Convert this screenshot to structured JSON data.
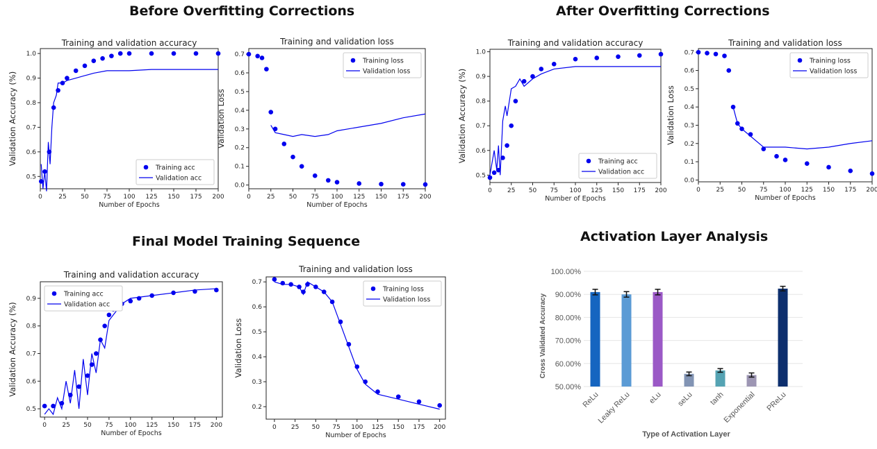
{
  "sections": {
    "before": "Before Overfitting Corrections",
    "after": "After Overfitting Corrections",
    "final": "Final Model Training Sequence",
    "activation": "Activation Layer Analysis"
  },
  "colors": {
    "series": "#0000ee",
    "grid": "#e5e5e5"
  },
  "chart_data": [
    {
      "id": "before_acc",
      "type": "line",
      "title": "Training and validation accuracy",
      "xlabel": "Number of Epochs",
      "ylabel": "Validation Accuracy (%)",
      "xlim": [
        0,
        200
      ],
      "ylim": [
        0.45,
        1.02
      ],
      "xticks": [
        0,
        25,
        50,
        75,
        100,
        125,
        150,
        175,
        200
      ],
      "yticks": [
        0.5,
        0.6,
        0.7,
        0.8,
        0.9,
        1.0
      ],
      "legend": "bottom-right",
      "series": [
        {
          "name": "Training acc",
          "style": "dots",
          "x": [
            1,
            5,
            10,
            15,
            20,
            25,
            30,
            40,
            50,
            60,
            70,
            80,
            90,
            100,
            125,
            150,
            175,
            200
          ],
          "y": [
            0.48,
            0.52,
            0.6,
            0.78,
            0.85,
            0.88,
            0.9,
            0.93,
            0.95,
            0.97,
            0.98,
            0.99,
            1.0,
            1.0,
            1.0,
            1.0,
            1.0,
            1.0
          ]
        },
        {
          "name": "Validation acc",
          "style": "line",
          "x": [
            1,
            3,
            5,
            7,
            9,
            11,
            13,
            15,
            18,
            20,
            25,
            30,
            40,
            50,
            60,
            75,
            100,
            125,
            150,
            175,
            200
          ],
          "y": [
            0.55,
            0.45,
            0.52,
            0.44,
            0.64,
            0.55,
            0.7,
            0.8,
            0.83,
            0.88,
            0.88,
            0.89,
            0.9,
            0.91,
            0.92,
            0.93,
            0.93,
            0.935,
            0.935,
            0.935,
            0.935
          ]
        }
      ]
    },
    {
      "id": "before_loss",
      "type": "line",
      "title": "Training and validation loss",
      "xlabel": "Number of Epochs",
      "ylabel": "Validation Loss",
      "xlim": [
        0,
        200
      ],
      "ylim": [
        -0.02,
        0.73
      ],
      "xticks": [
        0,
        25,
        50,
        75,
        100,
        125,
        150,
        175,
        200
      ],
      "yticks": [
        0.0,
        0.1,
        0.2,
        0.3,
        0.4,
        0.5,
        0.6,
        0.7
      ],
      "legend": "top-right",
      "series": [
        {
          "name": "Training loss",
          "style": "dots",
          "x": [
            0,
            10,
            15,
            20,
            25,
            30,
            40,
            50,
            60,
            75,
            90,
            100,
            125,
            150,
            175,
            200
          ],
          "y": [
            0.7,
            0.69,
            0.68,
            0.62,
            0.39,
            0.3,
            0.22,
            0.15,
            0.1,
            0.05,
            0.025,
            0.015,
            0.008,
            0.005,
            0.004,
            0.003
          ]
        },
        {
          "name": "Validation loss",
          "style": "line",
          "x": [
            25,
            30,
            40,
            50,
            60,
            75,
            90,
            100,
            125,
            150,
            175,
            200
          ],
          "y": [
            0.32,
            0.28,
            0.27,
            0.26,
            0.27,
            0.26,
            0.27,
            0.29,
            0.31,
            0.33,
            0.36,
            0.38
          ]
        }
      ]
    },
    {
      "id": "after_acc",
      "type": "line",
      "title": "Training and validation accuracy",
      "xlabel": "Number of Epochs",
      "ylabel": "Validation Accuracy (%)",
      "xlim": [
        0,
        200
      ],
      "ylim": [
        0.47,
        1.01
      ],
      "xticks": [
        0,
        25,
        50,
        75,
        100,
        125,
        150,
        175,
        200
      ],
      "yticks": [
        0.5,
        0.6,
        0.7,
        0.8,
        0.9,
        1.0
      ],
      "legend": "bottom-right",
      "series": [
        {
          "name": "Training acc",
          "style": "dots",
          "x": [
            0,
            5,
            10,
            15,
            20,
            25,
            30,
            40,
            50,
            60,
            75,
            100,
            125,
            150,
            175,
            200
          ],
          "y": [
            0.49,
            0.51,
            0.52,
            0.57,
            0.62,
            0.7,
            0.8,
            0.88,
            0.9,
            0.93,
            0.95,
            0.97,
            0.975,
            0.98,
            0.985,
            0.99
          ]
        },
        {
          "name": "Validation acc",
          "style": "line",
          "x": [
            0,
            5,
            8,
            10,
            12,
            15,
            18,
            20,
            25,
            30,
            35,
            40,
            50,
            60,
            75,
            100,
            125,
            150,
            175,
            200
          ],
          "y": [
            0.5,
            0.6,
            0.52,
            0.62,
            0.5,
            0.72,
            0.78,
            0.74,
            0.85,
            0.86,
            0.89,
            0.86,
            0.89,
            0.91,
            0.93,
            0.94,
            0.94,
            0.94,
            0.94,
            0.94
          ]
        }
      ]
    },
    {
      "id": "after_loss",
      "type": "line",
      "title": "Training and validation loss",
      "xlabel": "Number of Epochs",
      "ylabel": "Validation Loss",
      "xlim": [
        0,
        200
      ],
      "ylim": [
        -0.01,
        0.72
      ],
      "xticks": [
        0,
        25,
        50,
        75,
        100,
        125,
        150,
        175,
        200
      ],
      "yticks": [
        0.0,
        0.1,
        0.2,
        0.3,
        0.4,
        0.5,
        0.6,
        0.7
      ],
      "legend": "top-right",
      "series": [
        {
          "name": "Training loss",
          "style": "dots",
          "x": [
            0,
            10,
            20,
            30,
            35,
            40,
            45,
            50,
            60,
            75,
            90,
            100,
            125,
            150,
            175,
            200
          ],
          "y": [
            0.7,
            0.695,
            0.69,
            0.68,
            0.6,
            0.4,
            0.31,
            0.28,
            0.25,
            0.17,
            0.13,
            0.11,
            0.09,
            0.07,
            0.05,
            0.035
          ]
        },
        {
          "name": "Validation loss",
          "style": "line",
          "x": [
            40,
            45,
            50,
            60,
            75,
            90,
            100,
            125,
            150,
            175,
            200
          ],
          "y": [
            0.4,
            0.31,
            0.28,
            0.24,
            0.18,
            0.18,
            0.18,
            0.17,
            0.18,
            0.2,
            0.215
          ]
        }
      ]
    },
    {
      "id": "final_acc",
      "type": "line",
      "title": "Training and validation accuracy",
      "xlabel": "Number of Epochs",
      "ylabel": "Validation Accuracy (%)",
      "xlim": [
        -5,
        207
      ],
      "ylim": [
        0.47,
        0.96
      ],
      "xticks": [
        0,
        25,
        50,
        75,
        100,
        125,
        150,
        175,
        200
      ],
      "yticks": [
        0.5,
        0.6,
        0.7,
        0.8,
        0.9
      ],
      "legend": "top-left",
      "series": [
        {
          "name": "Training acc",
          "style": "dots",
          "x": [
            0,
            10,
            20,
            30,
            40,
            50,
            55,
            60,
            65,
            70,
            75,
            80,
            90,
            100,
            110,
            125,
            150,
            175,
            200
          ],
          "y": [
            0.51,
            0.51,
            0.52,
            0.55,
            0.58,
            0.62,
            0.66,
            0.7,
            0.75,
            0.8,
            0.84,
            0.86,
            0.88,
            0.89,
            0.9,
            0.91,
            0.92,
            0.925,
            0.93
          ]
        },
        {
          "name": "Validation acc",
          "style": "line",
          "x": [
            0,
            5,
            10,
            15,
            20,
            25,
            30,
            35,
            40,
            45,
            50,
            55,
            60,
            65,
            70,
            75,
            80,
            90,
            100,
            125,
            150,
            175,
            200
          ],
          "y": [
            0.48,
            0.5,
            0.48,
            0.54,
            0.5,
            0.6,
            0.52,
            0.64,
            0.5,
            0.68,
            0.55,
            0.7,
            0.63,
            0.75,
            0.72,
            0.82,
            0.84,
            0.88,
            0.9,
            0.91,
            0.92,
            0.93,
            0.935
          ]
        }
      ]
    },
    {
      "id": "final_loss",
      "type": "line",
      "title": "Training and validation loss",
      "xlabel": "Number of Epochs",
      "ylabel": "Validation Loss",
      "xlim": [
        -10,
        207
      ],
      "ylim": [
        0.15,
        0.72
      ],
      "xticks": [
        0,
        25,
        50,
        75,
        100,
        125,
        150,
        175,
        200
      ],
      "yticks": [
        0.2,
        0.3,
        0.4,
        0.5,
        0.6,
        0.7
      ],
      "legend": "top-right",
      "series": [
        {
          "name": "Training loss",
          "style": "dots",
          "x": [
            0,
            10,
            20,
            30,
            35,
            40,
            50,
            60,
            70,
            80,
            90,
            100,
            110,
            125,
            150,
            175,
            200
          ],
          "y": [
            0.71,
            0.695,
            0.69,
            0.68,
            0.66,
            0.69,
            0.68,
            0.66,
            0.62,
            0.54,
            0.45,
            0.36,
            0.3,
            0.26,
            0.24,
            0.22,
            0.205
          ]
        },
        {
          "name": "Validation loss",
          "style": "line",
          "x": [
            0,
            10,
            20,
            30,
            35,
            40,
            50,
            60,
            70,
            80,
            90,
            100,
            110,
            125,
            150,
            175,
            200
          ],
          "y": [
            0.7,
            0.69,
            0.69,
            0.68,
            0.65,
            0.7,
            0.68,
            0.66,
            0.62,
            0.53,
            0.44,
            0.35,
            0.29,
            0.25,
            0.23,
            0.21,
            0.19
          ]
        }
      ]
    },
    {
      "id": "activation",
      "type": "bar",
      "xlabel": "Type of Activation Layer",
      "ylabel": "Cross Validated Accuracy",
      "ylim": [
        50,
        100
      ],
      "yticks": [
        "50.00%",
        "60.00%",
        "70.00%",
        "80.00%",
        "90.00%",
        "100.00%"
      ],
      "categories": [
        "ReLu",
        "Leaky ReLu",
        "eLu",
        "seLu",
        "tanh",
        "Exponential",
        "PReLu"
      ],
      "values": [
        91,
        90,
        91,
        55.5,
        57,
        55,
        92.5
      ],
      "errors": [
        1.2,
        1.2,
        1.2,
        0.8,
        0.8,
        0.9,
        1.0
      ],
      "colors": [
        "#1565c0",
        "#5b9bd5",
        "#9b59c6",
        "#8294b4",
        "#55a3b3",
        "#9d96b3",
        "#0d2f6e"
      ]
    }
  ]
}
